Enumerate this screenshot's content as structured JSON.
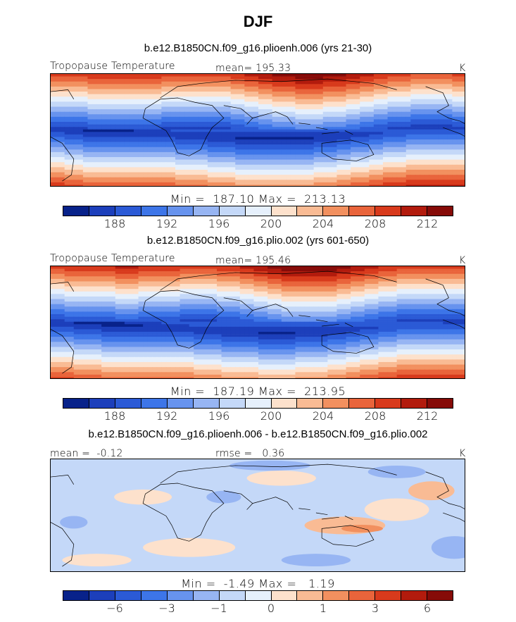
{
  "chart_data": [
    {
      "type": "heatmap",
      "title": "DJF",
      "subtitle": "b.e12.B1850CN.f09_g16.plioenh.006 (yrs 21-30)",
      "variable": "Tropopause Temperature",
      "mean_label": "mean= 195.33",
      "units": "K",
      "minmax_label": "Min =  187.10 Max =  213.13",
      "min": 187.1,
      "max": 213.13,
      "mean": 195.33,
      "colorbar_levels": [
        186,
        188,
        190,
        192,
        194,
        196,
        198,
        200,
        202,
        204,
        206,
        208,
        210,
        212,
        214
      ],
      "colorbar_ticks": [
        "188",
        "192",
        "196",
        "200",
        "204",
        "208",
        "212"
      ]
    },
    {
      "type": "heatmap",
      "subtitle": "b.e12.B1850CN.f09_g16.plio.002 (yrs 601-650)",
      "variable": "Tropopause Temperature",
      "mean_label": "mean= 195.46",
      "units": "K",
      "minmax_label": "Min =  187.19 Max =  213.95",
      "min": 187.19,
      "max": 213.95,
      "mean": 195.46,
      "colorbar_levels": [
        186,
        188,
        190,
        192,
        194,
        196,
        198,
        200,
        202,
        204,
        206,
        208,
        210,
        212,
        214
      ],
      "colorbar_ticks": [
        "188",
        "192",
        "196",
        "200",
        "204",
        "208",
        "212"
      ]
    },
    {
      "type": "heatmap",
      "subtitle": "b.e12.B1850CN.f09_g16.plioenh.006 - b.e12.B1850CN.f09_g16.plio.002",
      "mean_label": "mean =  -0.12",
      "rmse_label": "rmse =   0.36",
      "units": "K",
      "minmax_label": "Min =  -1.49 Max =   1.19",
      "min": -1.49,
      "max": 1.19,
      "mean": -0.12,
      "rmse": 0.36,
      "colorbar_levels": [
        -8,
        -6,
        -4,
        -3,
        -2,
        -1,
        -0.5,
        0,
        0.5,
        1,
        2,
        3,
        4,
        6,
        8
      ],
      "colorbar_ticks": [
        "−6",
        "−3",
        "−1",
        "0",
        "1",
        "3",
        "6"
      ]
    }
  ],
  "colors": {
    "scale": [
      "#08228a",
      "#1c3fbb",
      "#2b5ad6",
      "#3d75e8",
      "#6793ee",
      "#97b5f3",
      "#c4d8f8",
      "#e6f0fc",
      "#fde1cc",
      "#f9bb94",
      "#f2905f",
      "#e9643b",
      "#d83a1c",
      "#b21b0d",
      "#860b08"
    ]
  }
}
